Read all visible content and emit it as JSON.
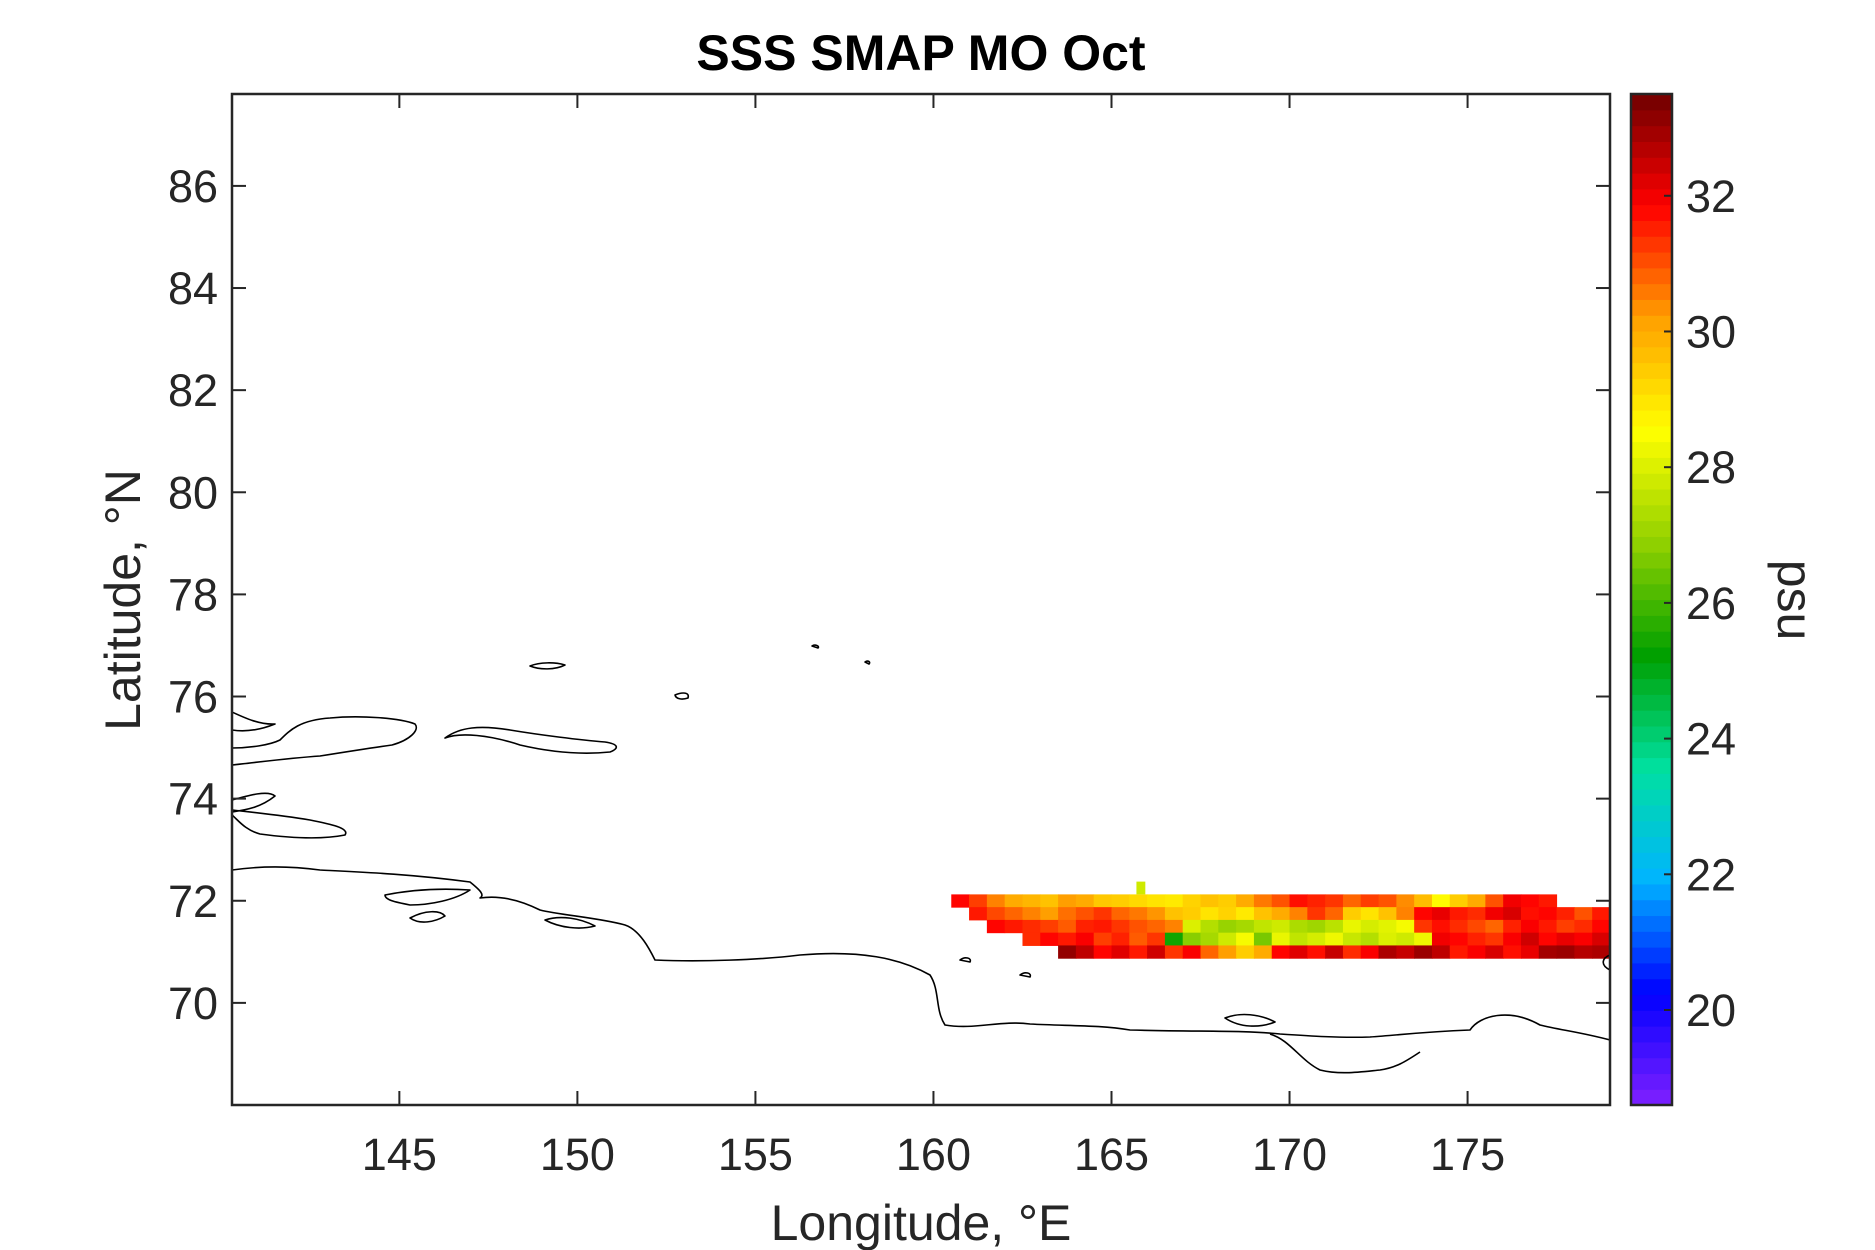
{
  "chart_data": {
    "type": "heatmap",
    "title": "SSS SMAP MO Oct",
    "xlabel": "Longitude, °E",
    "ylabel": "Latitude, °N",
    "xlim": [
      140.3,
      179.0
    ],
    "ylim": [
      68.0,
      87.8
    ],
    "xticks": [
      145,
      150,
      155,
      160,
      165,
      170,
      175
    ],
    "yticks": [
      70,
      72,
      74,
      76,
      78,
      80,
      82,
      84,
      86
    ],
    "colorbar": {
      "label": "psu",
      "range": [
        18.6,
        33.5
      ],
      "ticks": [
        20,
        22,
        24,
        26,
        28,
        30,
        32
      ],
      "colormap": "jet-like (purple-blue-cyan-green-yellow-orange-red-darkred)",
      "colors": [
        "#8020ff",
        "#0000ff",
        "#00b4ff",
        "#00e0a0",
        "#00a000",
        "#90d000",
        "#ffff00",
        "#ffa000",
        "#ff0000",
        "#700000"
      ]
    },
    "grid": false,
    "cell_size": {
      "lon": 0.5,
      "lat": 0.25
    },
    "data": {
      "lon_start": 160.5,
      "lat_rows": [
        72.0,
        71.75,
        71.5,
        71.25,
        71.0
      ],
      "values": [
        [
          31.8,
          31.2,
          30.5,
          30.0,
          29.8,
          29.6,
          30.2,
          30.0,
          29.5,
          29.4,
          29.2,
          29.0,
          28.9,
          29.3,
          29.6,
          29.4,
          30.0,
          30.6,
          31.0,
          31.7,
          31.5,
          31.3,
          30.8,
          31.2,
          31.0,
          30.4,
          29.7,
          28.6,
          29.4,
          30.0,
          31.0,
          32.0,
          31.8,
          31.6
        ],
        [
          null,
          31.6,
          31.1,
          30.8,
          30.5,
          30.2,
          30.7,
          31.0,
          31.3,
          30.8,
          30.6,
          30.3,
          29.6,
          29.4,
          29.0,
          29.3,
          28.9,
          29.6,
          30.0,
          30.5,
          31.3,
          30.8,
          29.4,
          29.0,
          29.6,
          30.5,
          31.8,
          32.1,
          31.6,
          31.4,
          32.0,
          32.3,
          31.7,
          31.8,
          31.5,
          31.0,
          31.6,
          32.1,
          31.8,
          31.5,
          31.7,
          32.2
        ],
        [
          null,
          null,
          31.8,
          31.6,
          31.4,
          31.2,
          30.9,
          31.5,
          31.6,
          31.3,
          31.0,
          30.8,
          30.5,
          28.0,
          27.4,
          27.0,
          27.2,
          27.6,
          27.8,
          27.3,
          27.1,
          27.5,
          28.2,
          27.9,
          28.1,
          28.4,
          31.3,
          31.7,
          31.4,
          31.1,
          30.8,
          31.5,
          31.9,
          31.6,
          31.2,
          31.4,
          31.8,
          32.2,
          31.9,
          31.6,
          31.3,
          31.5,
          31.0,
          30.5
        ],
        [
          null,
          null,
          null,
          null,
          31.4,
          31.8,
          31.6,
          31.9,
          31.2,
          31.5,
          30.9,
          31.3,
          25.4,
          26.8,
          27.2,
          27.8,
          28.4,
          26.6,
          28.2,
          27.6,
          27.9,
          28.3,
          27.7,
          27.4,
          28.0,
          27.8,
          28.3,
          32.0,
          31.8,
          31.5,
          31.3,
          31.9,
          32.4,
          31.8,
          32.1,
          31.9,
          32.3,
          31.4,
          31.7,
          32.0,
          31.6,
          31.8,
          31.2,
          30.6,
          29.8
        ],
        [
          null,
          null,
          null,
          null,
          null,
          null,
          33.1,
          32.6,
          31.8,
          32.2,
          31.6,
          32.4,
          31.3,
          31.9,
          30.8,
          30.2,
          29.4,
          30.0,
          31.8,
          32.2,
          31.7,
          32.5,
          31.4,
          31.9,
          32.8,
          32.5,
          33.0,
          32.6,
          31.6,
          31.9,
          32.3,
          31.7,
          32.1,
          32.9,
          33.0,
          32.7,
          32.8,
          32.5,
          33.0,
          32.6,
          31.9,
          31.5,
          31.7,
          31.2,
          30.6,
          31.6,
          32.4
        ]
      ],
      "outliers": [
        {
          "lon": 165.7,
          "lat": 72.25,
          "value": 27.8
        }
      ]
    }
  }
}
